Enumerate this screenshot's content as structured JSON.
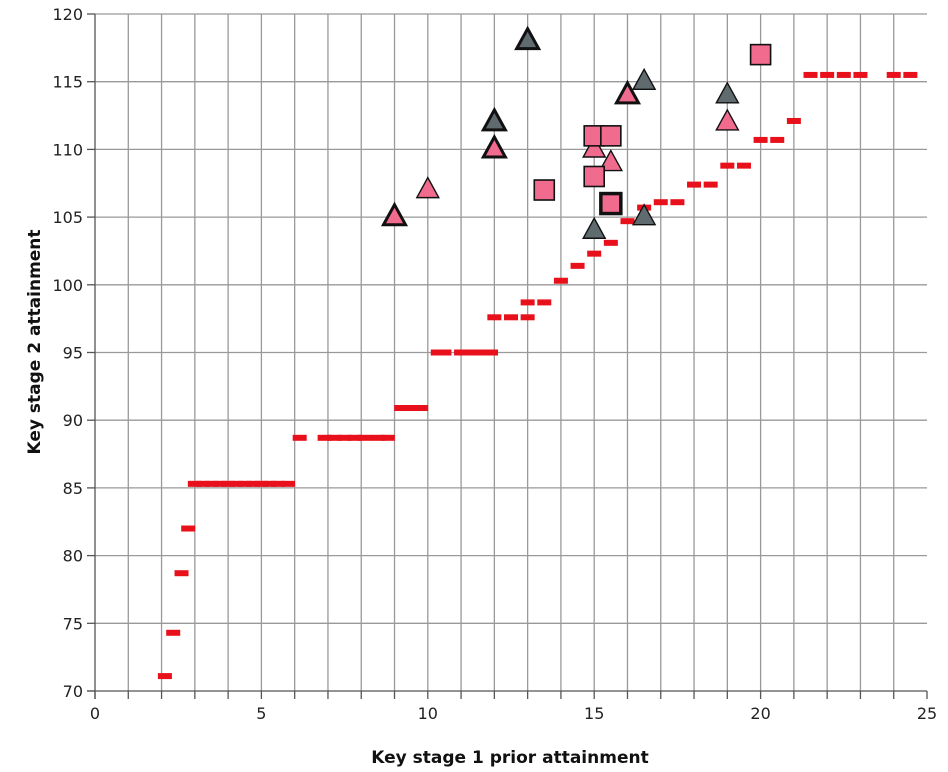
{
  "chart_data": {
    "type": "scatter",
    "xlabel": "Key stage 1 prior attainment",
    "ylabel": "Key stage 2 attainment",
    "xlim": [
      0,
      25
    ],
    "ylim": [
      70,
      120
    ],
    "x_ticks": [
      0,
      5,
      10,
      15,
      20,
      25
    ],
    "y_ticks": [
      70,
      75,
      80,
      85,
      90,
      95,
      100,
      105,
      110,
      115,
      120
    ],
    "grid": true,
    "colors": {
      "pink": "#f06b8e",
      "grey": "#5f6b6f",
      "red": "#e8101a",
      "grid": "#999999"
    },
    "series": [
      {
        "marker": "dash",
        "color": "#e8101a",
        "points": [
          [
            2.1,
            71.1
          ],
          [
            2.35,
            74.3
          ],
          [
            2.6,
            78.7
          ],
          [
            2.8,
            82.0
          ],
          [
            3.0,
            85.3
          ],
          [
            3.25,
            85.3
          ],
          [
            3.5,
            85.3
          ],
          [
            3.75,
            85.3
          ],
          [
            4.0,
            85.3
          ],
          [
            4.25,
            85.3
          ],
          [
            4.5,
            85.3
          ],
          [
            4.75,
            85.3
          ],
          [
            5.0,
            85.3
          ],
          [
            5.25,
            85.3
          ],
          [
            5.5,
            85.3
          ],
          [
            5.8,
            85.3
          ],
          [
            6.15,
            88.7
          ],
          [
            6.9,
            88.7
          ],
          [
            7.2,
            88.7
          ],
          [
            7.5,
            88.7
          ],
          [
            7.8,
            88.7
          ],
          [
            8.1,
            88.7
          ],
          [
            8.5,
            88.7
          ],
          [
            8.8,
            88.7
          ],
          [
            9.2,
            90.9
          ],
          [
            9.5,
            90.9
          ],
          [
            9.8,
            90.9
          ],
          [
            10.3,
            95.0
          ],
          [
            10.5,
            95.0
          ],
          [
            11.0,
            95.0
          ],
          [
            11.3,
            95.0
          ],
          [
            11.6,
            95.0
          ],
          [
            11.9,
            95.0
          ],
          [
            12.0,
            97.6
          ],
          [
            12.5,
            97.6
          ],
          [
            13.0,
            97.6
          ],
          [
            13.0,
            98.7
          ],
          [
            13.5,
            98.7
          ],
          [
            14.0,
            100.3
          ],
          [
            14.5,
            101.4
          ],
          [
            15.0,
            102.3
          ],
          [
            15.5,
            103.1
          ],
          [
            16.0,
            104.7
          ],
          [
            16.5,
            105.7
          ],
          [
            17.0,
            106.1
          ],
          [
            17.5,
            106.1
          ],
          [
            18.0,
            107.4
          ],
          [
            18.5,
            107.4
          ],
          [
            19.0,
            108.8
          ],
          [
            19.5,
            108.8
          ],
          [
            20.0,
            110.7
          ],
          [
            20.5,
            110.7
          ],
          [
            21.0,
            112.1
          ],
          [
            21.5,
            115.5
          ],
          [
            22.0,
            115.5
          ],
          [
            22.5,
            115.5
          ],
          [
            23.0,
            115.5
          ],
          [
            24.0,
            115.5
          ],
          [
            24.5,
            115.5
          ]
        ]
      },
      {
        "marker": "triangle",
        "color": "#f06b8e",
        "outline": "thin",
        "points": [
          [
            10.0,
            107
          ],
          [
            15.0,
            110
          ],
          [
            15.5,
            109
          ],
          [
            19.0,
            112
          ]
        ]
      },
      {
        "marker": "triangle",
        "color": "#f06b8e",
        "outline": "thick",
        "points": [
          [
            9.0,
            105
          ],
          [
            12.0,
            110
          ],
          [
            16.0,
            114
          ]
        ]
      },
      {
        "marker": "triangle",
        "color": "#5f6b6f",
        "outline": "thin",
        "points": [
          [
            15.0,
            104
          ],
          [
            16.5,
            105
          ],
          [
            16.5,
            115
          ],
          [
            19.0,
            114
          ]
        ]
      },
      {
        "marker": "triangle",
        "color": "#5f6b6f",
        "outline": "thick",
        "points": [
          [
            12.0,
            112
          ],
          [
            13.0,
            118
          ]
        ]
      },
      {
        "marker": "square",
        "color": "#f06b8e",
        "outline": "thin",
        "points": [
          [
            13.5,
            107
          ],
          [
            15.0,
            108
          ],
          [
            15.0,
            111
          ],
          [
            15.5,
            111
          ],
          [
            20.0,
            117
          ]
        ]
      },
      {
        "marker": "square",
        "color": "#f06b8e",
        "outline": "thick",
        "points": [
          [
            15.5,
            106
          ]
        ]
      }
    ]
  }
}
